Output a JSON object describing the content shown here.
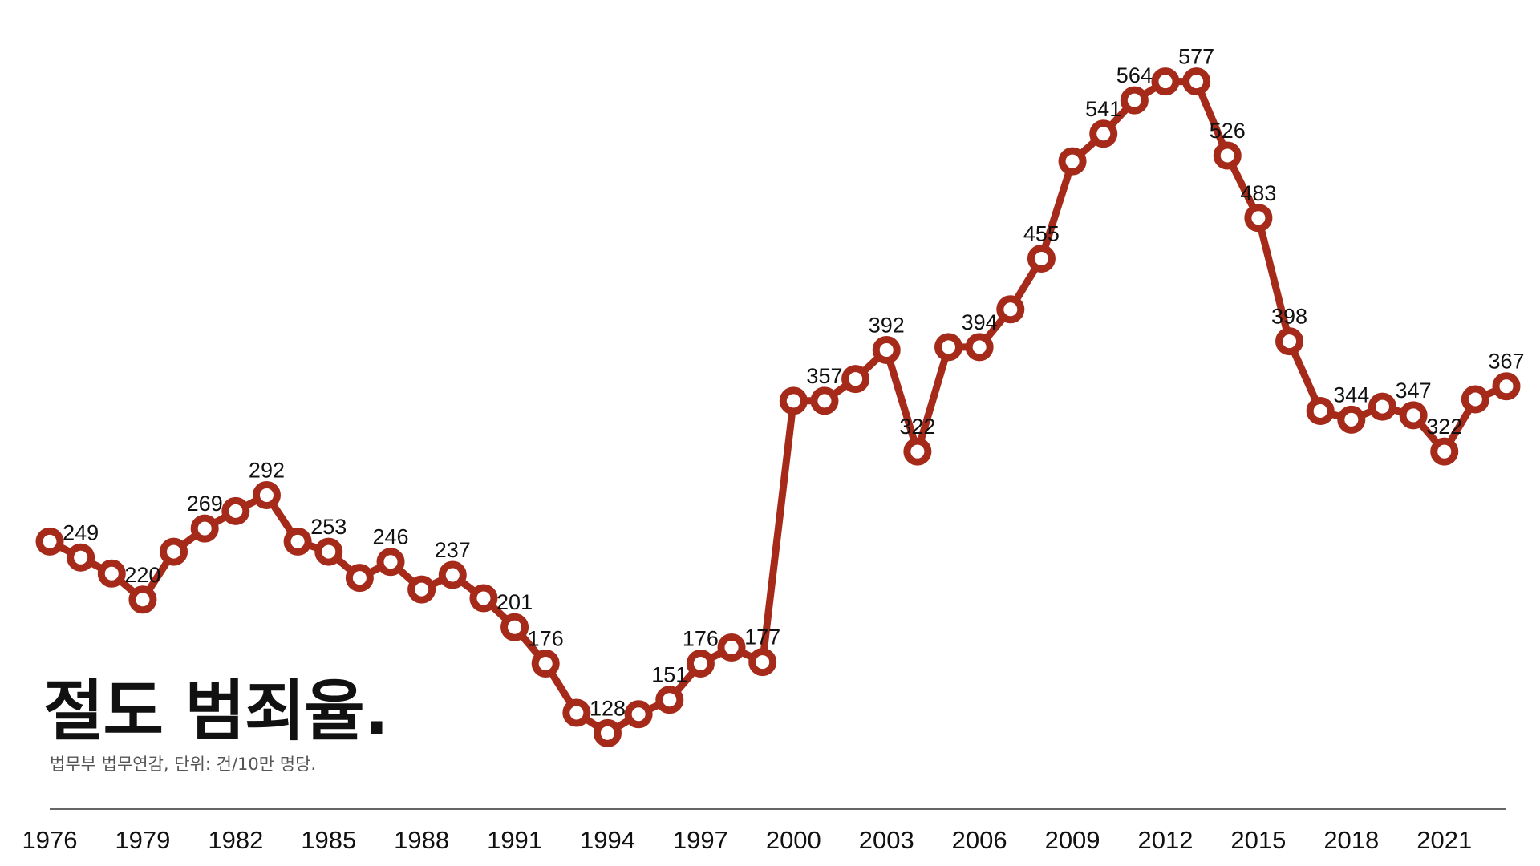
{
  "colors": {
    "line": "#a52a1a",
    "marker_fill": "#ffffff",
    "axis": "#333333",
    "text": "#111111"
  },
  "chart_data": {
    "type": "line",
    "title": "절도 범죄율.",
    "source": "법무부 법무연감, 단위: 건/10만 명당.",
    "xlim": [
      1976,
      2023
    ],
    "ylim": [
      100,
      600
    ],
    "x_ticks": [
      "1976",
      "1979",
      "1982",
      "1985",
      "1988",
      "1991",
      "1994",
      "1997",
      "2000",
      "2003",
      "2006",
      "2009",
      "2012",
      "2015",
      "2018",
      "2021"
    ],
    "grid": false,
    "series": [
      {
        "x": [
          1976,
          1977,
          1978,
          1979,
          1980,
          1981,
          1982,
          1983,
          1984,
          1985,
          1986,
          1987,
          1988,
          1989,
          1990,
          1991,
          1992,
          1993,
          1994,
          1995,
          1996,
          1997,
          1998,
          1999,
          2000,
          2001,
          2002,
          2003,
          2004,
          2005,
          2006,
          2007,
          2008,
          2009,
          2010,
          2011,
          2012,
          2013,
          2014,
          2015,
          2016,
          2017,
          2018,
          2019,
          2020,
          2021,
          2022,
          2023
        ],
        "y": [
          260,
          249,
          238,
          220,
          253,
          269,
          281,
          292,
          260,
          253,
          235,
          246,
          227,
          237,
          221,
          201,
          176,
          142,
          128,
          141,
          151,
          176,
          187,
          177,
          357,
          357,
          372,
          392,
          322,
          394,
          394,
          420,
          455,
          522,
          541,
          564,
          577,
          577,
          526,
          483,
          398,
          350,
          344,
          353,
          347,
          322,
          358,
          367
        ]
      }
    ],
    "data_labels": [
      {
        "x": 1977,
        "text": "249"
      },
      {
        "x": 1979,
        "text": "220"
      },
      {
        "x": 1981,
        "text": "269"
      },
      {
        "x": 1983,
        "text": "292"
      },
      {
        "x": 1985,
        "text": "253"
      },
      {
        "x": 1987,
        "text": "246"
      },
      {
        "x": 1989,
        "text": "237"
      },
      {
        "x": 1991,
        "text": "201"
      },
      {
        "x": 1992,
        "text": "176"
      },
      {
        "x": 1994,
        "text": "128"
      },
      {
        "x": 1996,
        "text": "151"
      },
      {
        "x": 1997,
        "text": "176"
      },
      {
        "x": 1999,
        "text": "177"
      },
      {
        "x": 2001,
        "text": "357"
      },
      {
        "x": 2003,
        "text": "392"
      },
      {
        "x": 2004,
        "text": "322"
      },
      {
        "x": 2006,
        "text": "394"
      },
      {
        "x": 2008,
        "text": "455"
      },
      {
        "x": 2010,
        "text": "541"
      },
      {
        "x": 2011,
        "text": "564"
      },
      {
        "x": 2013,
        "text": "577"
      },
      {
        "x": 2014,
        "text": "526"
      },
      {
        "x": 2015,
        "text": "483"
      },
      {
        "x": 2016,
        "text": "398"
      },
      {
        "x": 2018,
        "text": "344"
      },
      {
        "x": 2020,
        "text": "347"
      },
      {
        "x": 2021,
        "text": "322"
      },
      {
        "x": 2023,
        "text": "367"
      }
    ]
  }
}
